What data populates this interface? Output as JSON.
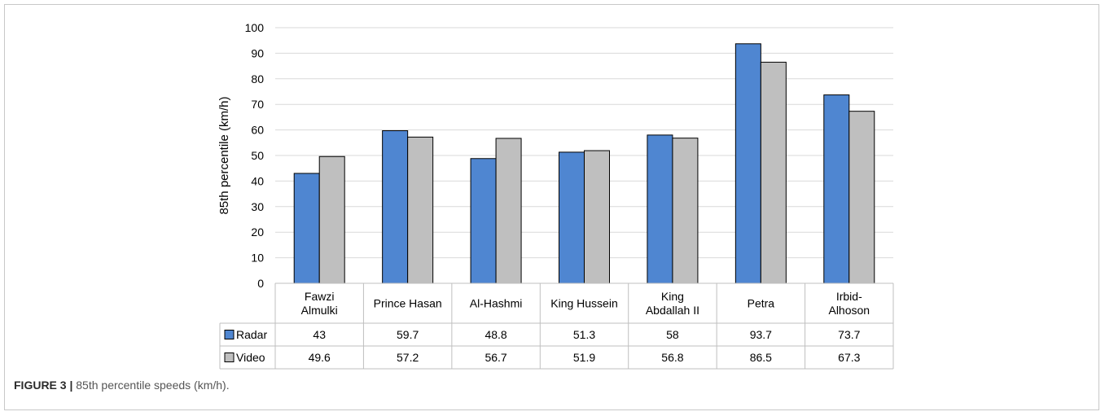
{
  "chart_data": {
    "type": "bar",
    "title": "",
    "xlabel": "",
    "ylabel": "85th percentile (km/h)",
    "ylim": [
      0,
      100
    ],
    "yticks": [
      0,
      10,
      20,
      30,
      40,
      50,
      60,
      70,
      80,
      90,
      100
    ],
    "grid": true,
    "legend": "data-table",
    "categories": [
      [
        "Fawzi",
        "Almulki"
      ],
      [
        "Prince Hasan"
      ],
      [
        "Al-Hashmi"
      ],
      [
        "King Hussein"
      ],
      [
        "King",
        "Abdallah II"
      ],
      [
        "Petra"
      ],
      [
        "Irbid-",
        "Alhoson"
      ]
    ],
    "series": [
      {
        "name": "Radar",
        "color": "#4f86d1",
        "values": [
          43,
          59.7,
          48.8,
          51.3,
          58,
          93.7,
          73.7
        ]
      },
      {
        "name": "Video",
        "color": "#bfbfbf",
        "values": [
          49.6,
          57.2,
          56.7,
          51.9,
          56.8,
          86.5,
          67.3
        ]
      }
    ]
  },
  "caption": {
    "label": "FIGURE 3 |",
    "text": " 85th percentile speeds (km/h)."
  }
}
